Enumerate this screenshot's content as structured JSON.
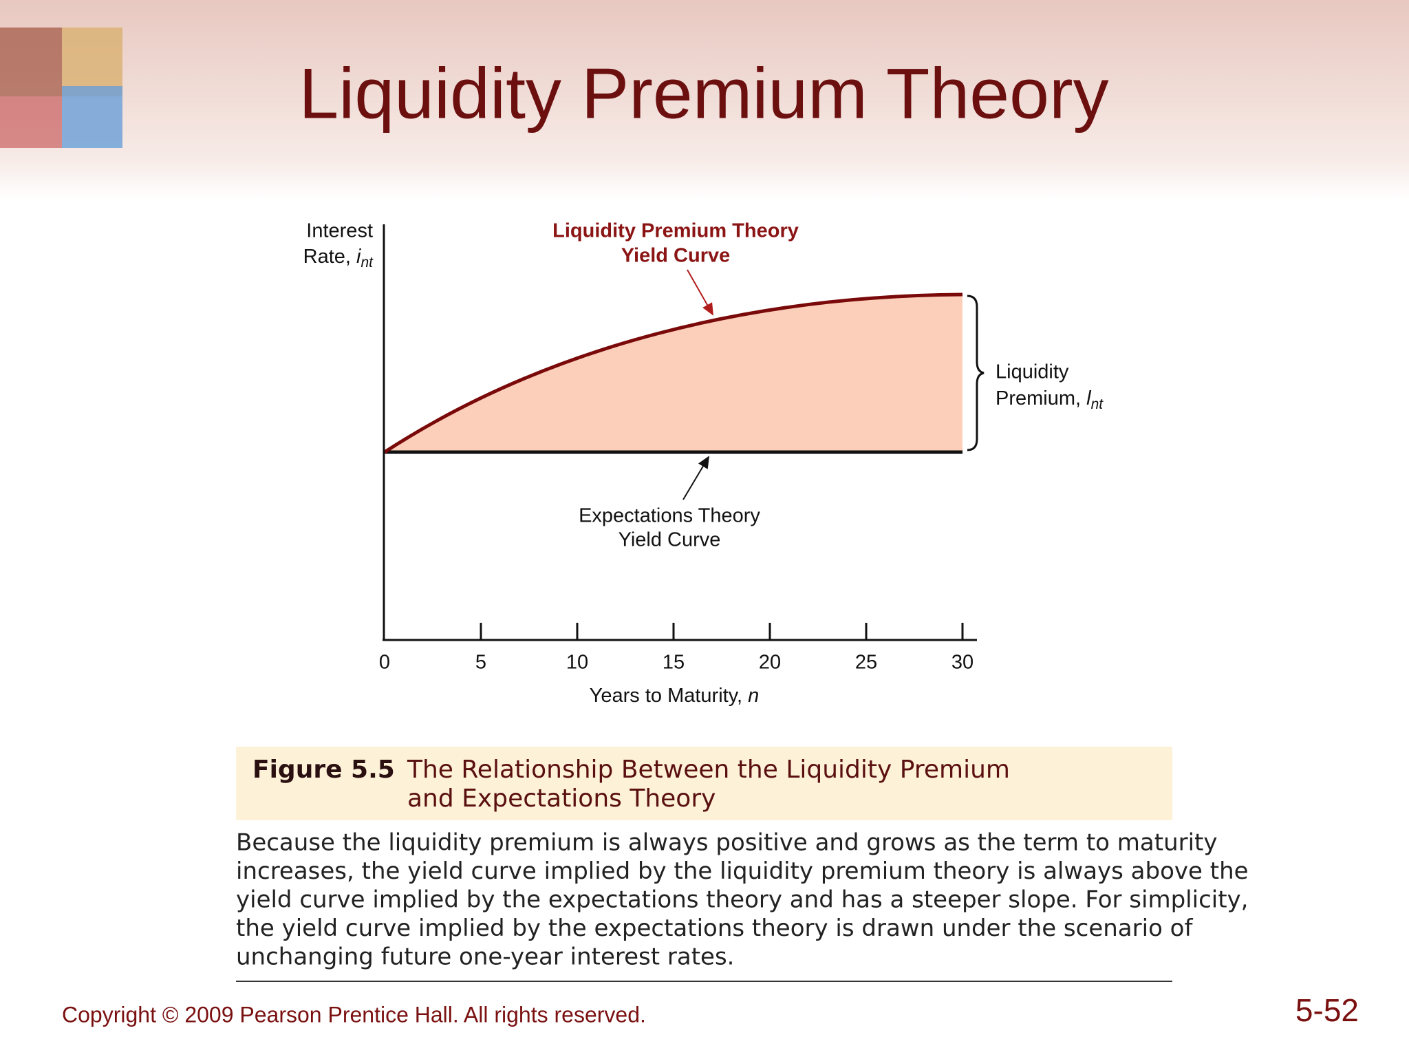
{
  "header": {
    "title": "Liquidity Premium Theory"
  },
  "chart_data": {
    "type": "line",
    "y_label": {
      "line1": "Interest",
      "line2": "Rate,",
      "symbol": "i",
      "subscript": "nt"
    },
    "x_label": {
      "text": "Years to Maturity,",
      "symbol": "n"
    },
    "xlim": [
      0,
      30
    ],
    "xticks": [
      0,
      5,
      10,
      15,
      20,
      25,
      30
    ],
    "annotations": {
      "liquidity_curve": [
        "Liquidity Premium Theory",
        "Yield Curve"
      ],
      "expectations_curve": [
        "Expectations Theory",
        "Yield Curve"
      ],
      "premium": {
        "line1": "Liquidity",
        "line2": "Premium,",
        "symbol": "l",
        "subscript": "nt"
      }
    }
  },
  "figure": {
    "number": "Figure 5.5",
    "title": [
      "The Relationship Between the Liquidity Premium",
      "and Expectations Theory"
    ],
    "caption": [
      "Because the liquidity premium is always positive and grows as the term to maturity",
      "increases, the yield curve implied by the liquidity premium theory is always above the",
      "yield curve implied by the expectations theory and has a steeper slope. For simplicity,",
      "the yield curve implied by the expectations theory is drawn under the scenario of",
      "unchanging future one-year interest rates."
    ]
  },
  "footer": {
    "copyright": "Copyright © 2009 Pearson Prentice Hall. All rights reserved.",
    "page": "5-52"
  }
}
